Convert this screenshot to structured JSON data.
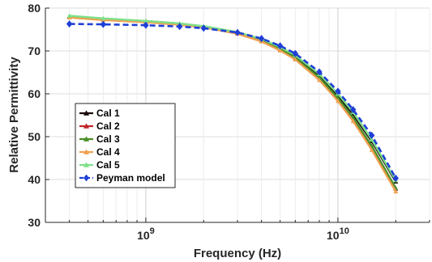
{
  "chart_data": {
    "type": "line",
    "title": "",
    "xlabel": "Frequency (Hz)",
    "ylabel": "Relative Permittivity",
    "x_scale": "log",
    "xlim": [
      300000000,
      30000000000
    ],
    "ylim": [
      30,
      80
    ],
    "y_ticks": [
      30,
      40,
      50,
      60,
      70,
      80
    ],
    "x_ticks": [
      {
        "value": 1000000000,
        "base": "10",
        "exp": "9"
      },
      {
        "value": 10000000000,
        "base": "10",
        "exp": "10"
      }
    ],
    "grid": true,
    "legend_position": "center-left",
    "series": [
      {
        "name": "Cal 1",
        "color": "#1a0a0a",
        "marker": "triangle",
        "x": [
          400000000,
          600000000,
          1000000000,
          1500000000,
          2000000000,
          3000000000,
          4000000000,
          5000000000,
          6000000000,
          8000000000,
          10000000000,
          12000000000,
          15000000000,
          20000000000
        ],
        "y": [
          78.0,
          77.4,
          76.8,
          76.2,
          75.6,
          74.2,
          72.5,
          70.6,
          68.6,
          64.2,
          59.6,
          55.2,
          48.9,
          39.5
        ]
      },
      {
        "name": "Cal 2",
        "color": "#c0282d",
        "marker": "triangle",
        "x": [
          400000000,
          600000000,
          1000000000,
          1500000000,
          2000000000,
          3000000000,
          4000000000,
          5000000000,
          6000000000,
          8000000000,
          10000000000,
          12000000000,
          15000000000,
          20000000000
        ],
        "y": [
          77.9,
          77.3,
          76.8,
          76.2,
          75.6,
          74.1,
          72.4,
          70.4,
          68.3,
          63.7,
          58.9,
          54.3,
          47.6,
          37.8
        ]
      },
      {
        "name": "Cal 3",
        "color": "#4a8f2a",
        "marker": "triangle",
        "x": [
          400000000,
          600000000,
          1000000000,
          1500000000,
          2000000000,
          3000000000,
          4000000000,
          5000000000,
          6000000000,
          8000000000,
          10000000000,
          12000000000,
          15000000000,
          20000000000
        ],
        "y": [
          78.1,
          77.5,
          77.0,
          76.4,
          75.7,
          74.2,
          72.5,
          70.5,
          68.4,
          63.8,
          59.0,
          54.4,
          47.8,
          38.0
        ]
      },
      {
        "name": "Cal 4",
        "color": "#f0a050",
        "marker": "triangle",
        "x": [
          400000000,
          600000000,
          1000000000,
          1500000000,
          2000000000,
          3000000000,
          4000000000,
          5000000000,
          6000000000,
          8000000000,
          10000000000,
          12000000000,
          15000000000,
          20000000000
        ],
        "y": [
          77.8,
          77.2,
          76.7,
          76.1,
          75.5,
          74.0,
          72.2,
          70.1,
          68.0,
          63.2,
          58.3,
          53.6,
          46.9,
          37.2
        ]
      },
      {
        "name": "Cal 5",
        "color": "#7ee08a",
        "marker": "triangle",
        "x": [
          400000000,
          600000000,
          1000000000,
          1500000000,
          2000000000,
          3000000000,
          4000000000,
          5000000000,
          6000000000,
          8000000000,
          10000000000,
          12000000000,
          15000000000,
          20000000000
        ],
        "y": [
          78.2,
          77.6,
          77.0,
          76.4,
          75.8,
          74.4,
          72.8,
          70.9,
          69.0,
          64.6,
          60.0,
          55.7,
          49.3,
          39.8
        ]
      },
      {
        "name": "Peyman model",
        "color": "#1f3fd6",
        "marker": "diamond",
        "dashed": true,
        "x": [
          400000000,
          600000000,
          1000000000,
          1500000000,
          2000000000,
          3000000000,
          4000000000,
          5000000000,
          6000000000,
          8000000000,
          10000000000,
          12000000000,
          15000000000,
          20000000000
        ],
        "y": [
          76.3,
          76.2,
          76.0,
          75.7,
          75.3,
          74.3,
          72.9,
          71.2,
          69.4,
          65.1,
          60.6,
          56.3,
          50.3,
          40.3
        ]
      }
    ]
  }
}
